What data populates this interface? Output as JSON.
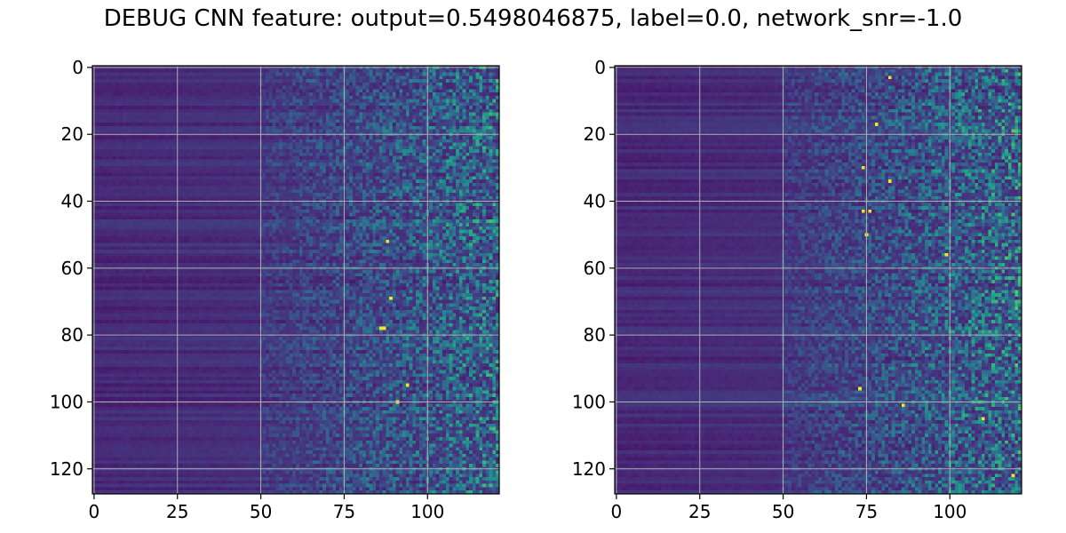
{
  "title": "DEBUG CNN feature: output=0.5498046875, label=0.0, network_snr=-1.0",
  "chart_data": [
    {
      "type": "heatmap",
      "colormap": "viridis",
      "grid": true,
      "rows": 128,
      "cols": 122,
      "xlim": [
        -0.5,
        121.5
      ],
      "ylim": [
        127.5,
        -0.5
      ],
      "xticks": [
        0,
        25,
        50,
        75,
        100
      ],
      "yticks": [
        0,
        20,
        40,
        60,
        80,
        100,
        120
      ],
      "pattern": "dark smooth columns 0-50, increasingly noisy speckled values toward the right",
      "bright_pixels": [
        [
          88,
          52
        ],
        [
          89,
          69
        ],
        [
          86,
          78
        ],
        [
          87,
          78
        ],
        [
          94,
          95
        ],
        [
          91,
          100
        ]
      ]
    },
    {
      "type": "heatmap",
      "colormap": "viridis",
      "grid": true,
      "rows": 128,
      "cols": 122,
      "xlim": [
        -0.5,
        121.5
      ],
      "ylim": [
        127.5,
        -0.5
      ],
      "xticks": [
        0,
        25,
        50,
        75,
        100
      ],
      "yticks": [
        0,
        20,
        40,
        60,
        80,
        100,
        120
      ],
      "pattern": "dark smooth columns 0-50, increasingly noisy speckled values toward the right",
      "bright_pixels": [
        [
          82,
          3
        ],
        [
          78,
          17
        ],
        [
          74,
          30
        ],
        [
          82,
          34
        ],
        [
          74,
          43
        ],
        [
          76,
          43
        ],
        [
          75,
          50
        ],
        [
          99,
          56
        ],
        [
          73,
          96
        ],
        [
          86,
          101
        ],
        [
          110,
          105
        ],
        [
          119,
          122
        ]
      ]
    }
  ],
  "colors": {
    "viridis": [
      "#440154",
      "#482878",
      "#3e4a89",
      "#31688e",
      "#26828e",
      "#1f9e89",
      "#35b779",
      "#6ece58",
      "#b5de2b",
      "#fde725"
    ],
    "grid": "#b0b0b0",
    "axis": "#000000"
  }
}
